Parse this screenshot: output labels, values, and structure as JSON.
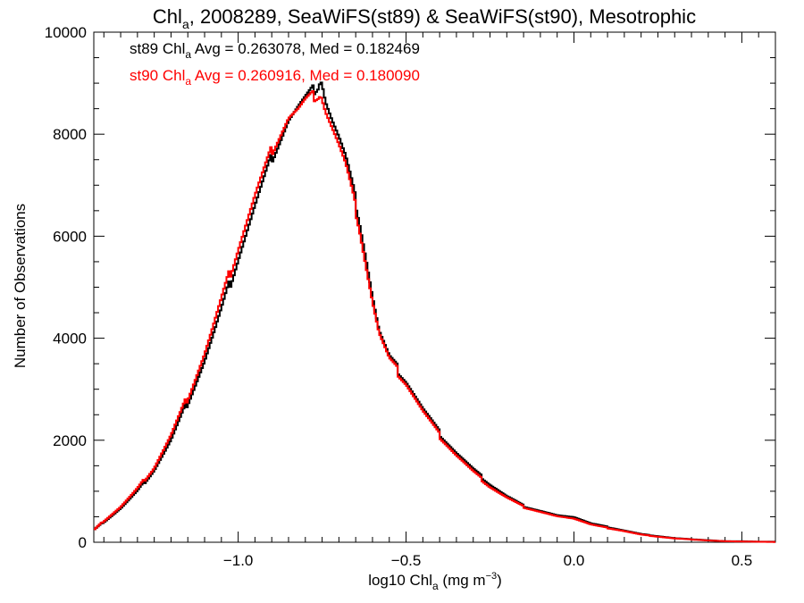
{
  "title": {
    "main": "Chl",
    "sub": "a",
    "rest": ", 2008289, SeaWiFS(st89) & SeaWiFS(st90), Mesotrophic"
  },
  "xlabel": {
    "pre": "log10 Chl",
    "sub": "a",
    "mid": " (mg m",
    "sup": "−3",
    "post": ")"
  },
  "ylabel": "Number of Observations",
  "legend": [
    {
      "pre": "st89 Chl",
      "sub": "a",
      "post": " Avg = 0.263078, Med = 0.182469",
      "color": "#000000"
    },
    {
      "pre": "st90 Chl",
      "sub": "a",
      "post": " Avg = 0.260916, Med = 0.180090",
      "color": "#ff0000"
    }
  ],
  "chart_data": {
    "type": "line",
    "step": true,
    "xlim": [
      -1.43,
      0.6
    ],
    "ylim": [
      0,
      10000
    ],
    "xticks": [
      -1.0,
      -0.5,
      0.0,
      0.5
    ],
    "xtick_labels": [
      "−1.0",
      "−0.5",
      "0.0",
      "0.5"
    ],
    "yticks": [
      0,
      2000,
      4000,
      6000,
      8000,
      10000
    ],
    "ytick_labels": [
      "0",
      "2000",
      "4000",
      "6000",
      "8000",
      "10000"
    ],
    "series": [
      {
        "name": "st89",
        "color": "#000000",
        "x": [
          -1.43,
          -1.4,
          -1.35,
          -1.3,
          -1.25,
          -1.2,
          -1.15,
          -1.1,
          -1.05,
          -1.0,
          -0.95,
          -0.9,
          -0.85,
          -0.82,
          -0.8,
          -0.78,
          -0.76,
          -0.755,
          -0.75,
          -0.74,
          -0.72,
          -0.7,
          -0.68,
          -0.66,
          -0.64,
          -0.62,
          -0.6,
          -0.58,
          -0.55,
          -0.5,
          -0.45,
          -0.4,
          -0.35,
          -0.3,
          -0.25,
          -0.2,
          -0.15,
          -0.1,
          -0.05,
          0.0,
          0.05,
          0.1,
          0.15,
          0.2,
          0.25,
          0.3,
          0.35,
          0.4,
          0.45,
          0.5,
          0.55,
          0.6
        ],
        "y": [
          250,
          420,
          700,
          1050,
          1500,
          2100,
          2900,
          3750,
          4750,
          5800,
          6800,
          7750,
          8500,
          8750,
          8900,
          9050,
          9200,
          9350,
          9250,
          8900,
          8500,
          8150,
          7750,
          7200,
          6600,
          5850,
          5050,
          4350,
          3800,
          3350,
          2750,
          2250,
          1850,
          1500,
          1200,
          950,
          750,
          650,
          550,
          500,
          370,
          300,
          230,
          160,
          120,
          80,
          60,
          40,
          20,
          20,
          10,
          10
        ]
      },
      {
        "name": "st90",
        "color": "#ff0000",
        "x": [
          -1.43,
          -1.4,
          -1.35,
          -1.3,
          -1.25,
          -1.2,
          -1.15,
          -1.1,
          -1.05,
          -1.0,
          -0.95,
          -0.9,
          -0.85,
          -0.82,
          -0.8,
          -0.78,
          -0.76,
          -0.755,
          -0.75,
          -0.74,
          -0.72,
          -0.7,
          -0.68,
          -0.66,
          -0.64,
          -0.62,
          -0.6,
          -0.58,
          -0.55,
          -0.5,
          -0.45,
          -0.4,
          -0.35,
          -0.3,
          -0.25,
          -0.2,
          -0.15,
          -0.1,
          -0.05,
          0.0,
          0.05,
          0.1,
          0.15,
          0.2,
          0.25,
          0.3,
          0.35,
          0.4,
          0.45,
          0.5,
          0.55,
          0.6
        ],
        "y": [
          250,
          440,
          730,
          1100,
          1550,
          2200,
          3000,
          3900,
          4950,
          6000,
          7000,
          7900,
          8550,
          8700,
          8850,
          8950,
          9000,
          9050,
          8950,
          8700,
          8350,
          8000,
          7600,
          7050,
          6450,
          5700,
          4950,
          4300,
          3750,
          3300,
          2700,
          2200,
          1800,
          1450,
          1150,
          920,
          730,
          630,
          530,
          470,
          350,
          280,
          220,
          150,
          110,
          75,
          55,
          35,
          20,
          15,
          10,
          5
        ]
      }
    ]
  }
}
